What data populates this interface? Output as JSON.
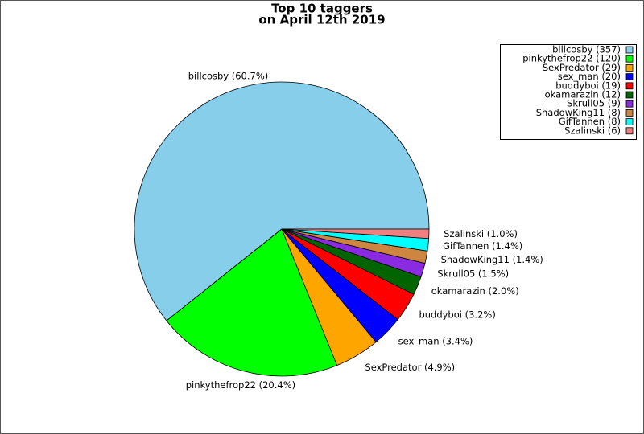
{
  "chart_data": {
    "type": "pie",
    "title": [
      "Top 10 taggers",
      "on April 12th 2019"
    ],
    "categories": [
      "billcosby",
      "pinkythefrop22",
      "SexPredator",
      "sex_man",
      "buddyboi",
      "okamarazin",
      "Skrull05",
      "ShadowKing11",
      "GifTannen",
      "Szalinski"
    ],
    "values": [
      357,
      120,
      29,
      20,
      19,
      12,
      9,
      8,
      8,
      6
    ],
    "colors": [
      "#87ceeb",
      "#00ff00",
      "#ffa500",
      "#0000ff",
      "#ff0000",
      "#006400",
      "#8a2be2",
      "#cd853f",
      "#00ffff",
      "#f08080"
    ],
    "slice_labels": [
      "billcosby (60.7%)",
      "pinkythefrop22 (20.4%)",
      "SexPredator (4.9%)",
      "sex_man (3.4%)",
      "buddyboi (3.2%)",
      "okamarazin (2.0%)",
      "Skrull05 (1.5%)",
      "ShadowKing11 (1.4%)",
      "GifTannen (1.4%)",
      "Szalinski (1.0%)"
    ],
    "legend_labels": [
      "billcosby (357)",
      "pinkythefrop22 (120)",
      "SexPredator (29)",
      "sex_man (20)",
      "buddyboi (19)",
      "okamarazin (12)",
      "Skrull05 (9)",
      "ShadowKing11 (8)",
      "GifTannen (8)",
      "Szalinski (6)"
    ],
    "legend": "upper right"
  }
}
